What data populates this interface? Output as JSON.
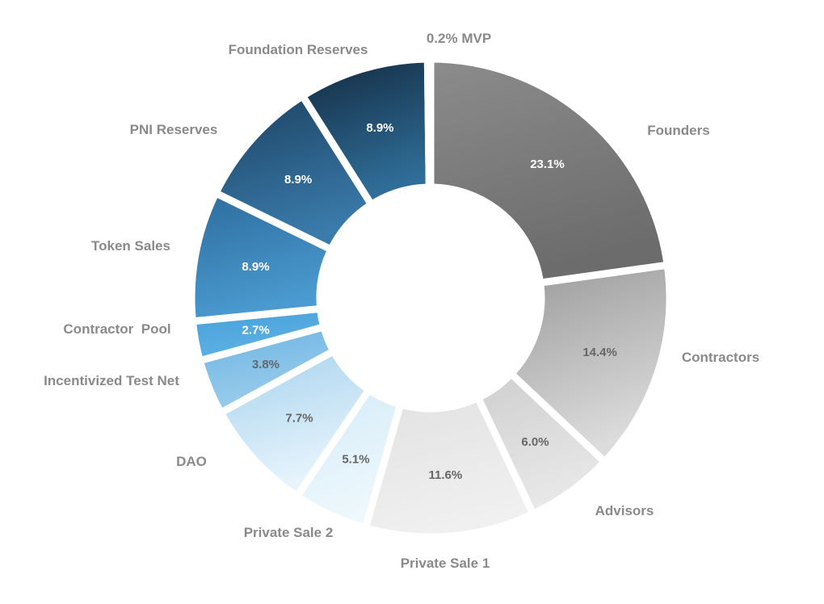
{
  "chart_data": {
    "type": "pie",
    "variant": "donut",
    "title": "",
    "direction": "clockwise from top",
    "slices": [
      {
        "name": "Founders",
        "value": 23.1,
        "value_label": "23.1%",
        "outside_label": "Founders",
        "color_start": "#8c8c8c",
        "color_end": "#6c6c6c",
        "text_color": "#ffffff"
      },
      {
        "name": "Contractors",
        "value": 14.4,
        "value_label": "14.4%",
        "outside_label": "Contractors",
        "color_start": "#9a9a9a",
        "color_end": "#dcdcdc",
        "text_color": "#666666"
      },
      {
        "name": "Advisors",
        "value": 6.0,
        "value_label": "6.0%",
        "outside_label": "Advisors",
        "color_start": "#cfcfcf",
        "color_end": "#e8e8e8",
        "text_color": "#666666"
      },
      {
        "name": "Private Sale 1",
        "value": 11.6,
        "value_label": "11.6%",
        "outside_label": "Private Sale 1",
        "color_start": "#e2e2e2",
        "color_end": "#f0f0f0",
        "text_color": "#666666"
      },
      {
        "name": "Private Sale 2",
        "value": 5.1,
        "value_label": "5.1%",
        "outside_label": "Private Sale 2",
        "color_start": "#d4ebf8",
        "color_end": "#eef8fd",
        "text_color": "#666666"
      },
      {
        "name": "DAO",
        "value": 7.7,
        "value_label": "7.7%",
        "outside_label": "DAO",
        "color_start": "#a6d2ee",
        "color_end": "#e9f5fc",
        "text_color": "#666666"
      },
      {
        "name": "Incentivized Test Net",
        "value": 3.8,
        "value_label": "3.8%",
        "outside_label": "Incentivized Test Net",
        "color_start": "#6cb4e2",
        "color_end": "#9ccdec",
        "text_color": "#666666"
      },
      {
        "name": "Contractor  Pool",
        "value": 2.7,
        "value_label": "2.7%",
        "outside_label": "Contractor  Pool",
        "color_start": "#47a1db",
        "color_end": "#5eb1e3",
        "text_color": "#ffffff"
      },
      {
        "name": "Token Sales",
        "value": 8.9,
        "value_label": "8.9%",
        "outside_label": "Token Sales",
        "color_start": "#2c6c9c",
        "color_end": "#4b9bd2",
        "text_color": "#ffffff"
      },
      {
        "name": "PNI Reserves",
        "value": 8.9,
        "value_label": "8.9%",
        "outside_label": "PNI Reserves",
        "color_start": "#1c4262",
        "color_end": "#3a7bab",
        "text_color": "#ffffff"
      },
      {
        "name": "Foundation Reserves",
        "value": 8.9,
        "value_label": "8.9%",
        "outside_label": "Foundation Reserves",
        "color_start": "#132a40",
        "color_end": "#2f6e98",
        "text_color": "#ffffff"
      },
      {
        "name": "MVP",
        "value": 0.2,
        "value_label": "",
        "outside_label": "0.2% MVP",
        "color_start": "#1f4b70",
        "color_end": "#1f4b70",
        "text_color": "#ffffff"
      }
    ]
  }
}
